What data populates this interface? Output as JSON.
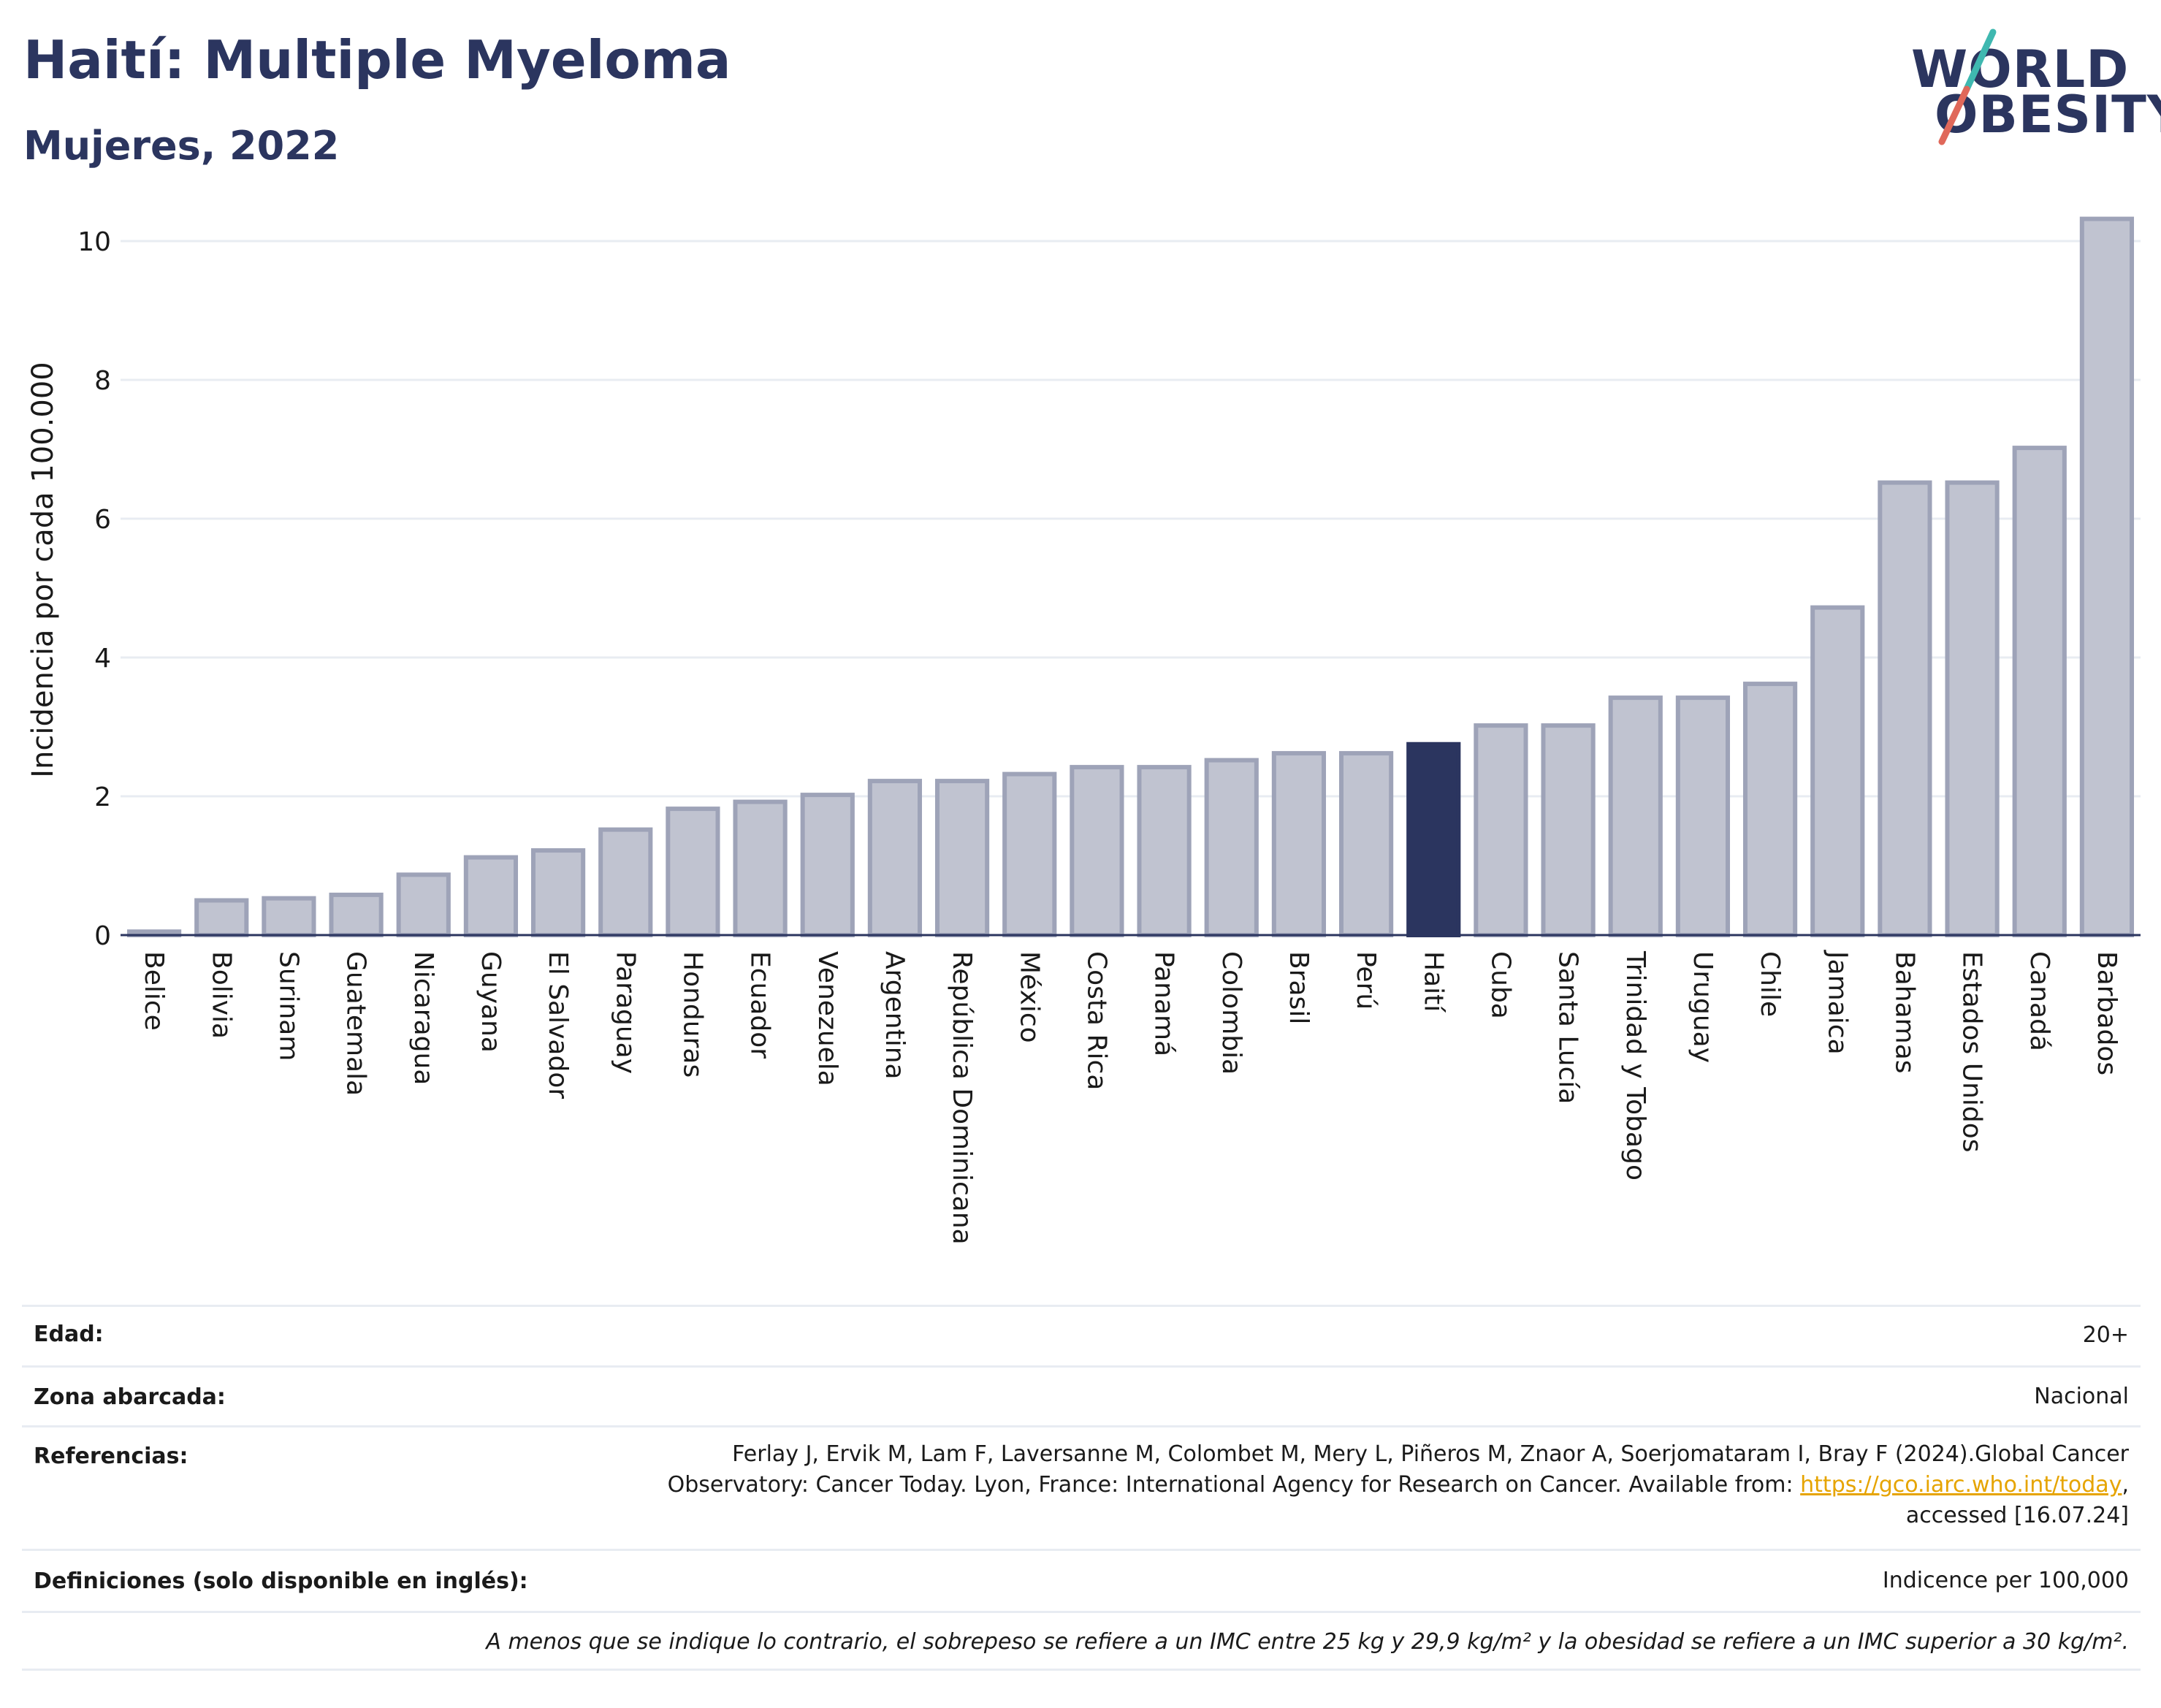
{
  "header": {
    "title": "Haití: Multiple Myeloma",
    "subtitle": "Mujeres, 2022",
    "logo_line1": "WORLD",
    "logo_line2": "OBESITY"
  },
  "colors": {
    "bar": "#c0c3d0",
    "bar_stroke": "#9ea3b8",
    "highlight": "#2b355f",
    "grid": "#e8ecf2",
    "logo_slash_teal": "#3fb8b0",
    "logo_slash_red": "#e0685a"
  },
  "chart_data": {
    "type": "bar",
    "title": "",
    "ylabel": "Incidencia por cada 100.000",
    "xlabel": "",
    "ylim": [
      0,
      10.4
    ],
    "yticks": [
      0,
      2,
      4,
      6,
      8,
      10
    ],
    "grid": true,
    "highlight": "Haití",
    "categories": [
      "Belice",
      "Bolivia",
      "Surinam",
      "Guatemala",
      "Nicaragua",
      "Guyana",
      "El Salvador",
      "Paraguay",
      "Honduras",
      "Ecuador",
      "Venezuela",
      "Argentina",
      "República Dominicana",
      "México",
      "Costa Rica",
      "Panamá",
      "Colombia",
      "Brasil",
      "Perú",
      "Haití",
      "Cuba",
      "Santa Lucía",
      "Trinidad y Tobago",
      "Uruguay",
      "Chile",
      "Jamaica",
      "Bahamas",
      "Estados Unidos",
      "Canadá",
      "Barbados"
    ],
    "values": [
      0.05,
      0.5,
      0.53,
      0.58,
      0.87,
      1.12,
      1.22,
      1.52,
      1.82,
      1.92,
      2.02,
      2.22,
      2.22,
      2.32,
      2.42,
      2.42,
      2.52,
      2.62,
      2.62,
      2.75,
      3.02,
      3.02,
      3.42,
      3.42,
      3.62,
      4.72,
      6.52,
      6.52,
      7.02,
      10.32
    ]
  },
  "details": {
    "age_label": "Edad:",
    "age_value": "20+",
    "zone_label": "Zona abarcada:",
    "zone_value": "Nacional",
    "refs_label": "Referencias:",
    "refs_line1": "Ferlay J, Ervik M, Lam F, Laversanne M, Colombet M, Mery L, Piñeros M, Znaor A, Soerjomataram I, Bray F (2024).Global Cancer",
    "refs_line2_pre": "Observatory: Cancer Today. Lyon, France: International Agency for Research on Cancer. Available from: ",
    "refs_link": "https://gco.iarc.who.int/today",
    "refs_line2_post": ",",
    "refs_line3": "accessed [16.07.24]",
    "defs_label": "Definiciones (solo disponible en inglés):",
    "defs_value": "Indicence per 100,000",
    "footnote": "A menos que se indique lo contrario, el sobrepeso se refiere a un IMC entre 25 kg y 29,9 kg/m² y la obesidad se refiere a un IMC superior a 30 kg/m²."
  }
}
